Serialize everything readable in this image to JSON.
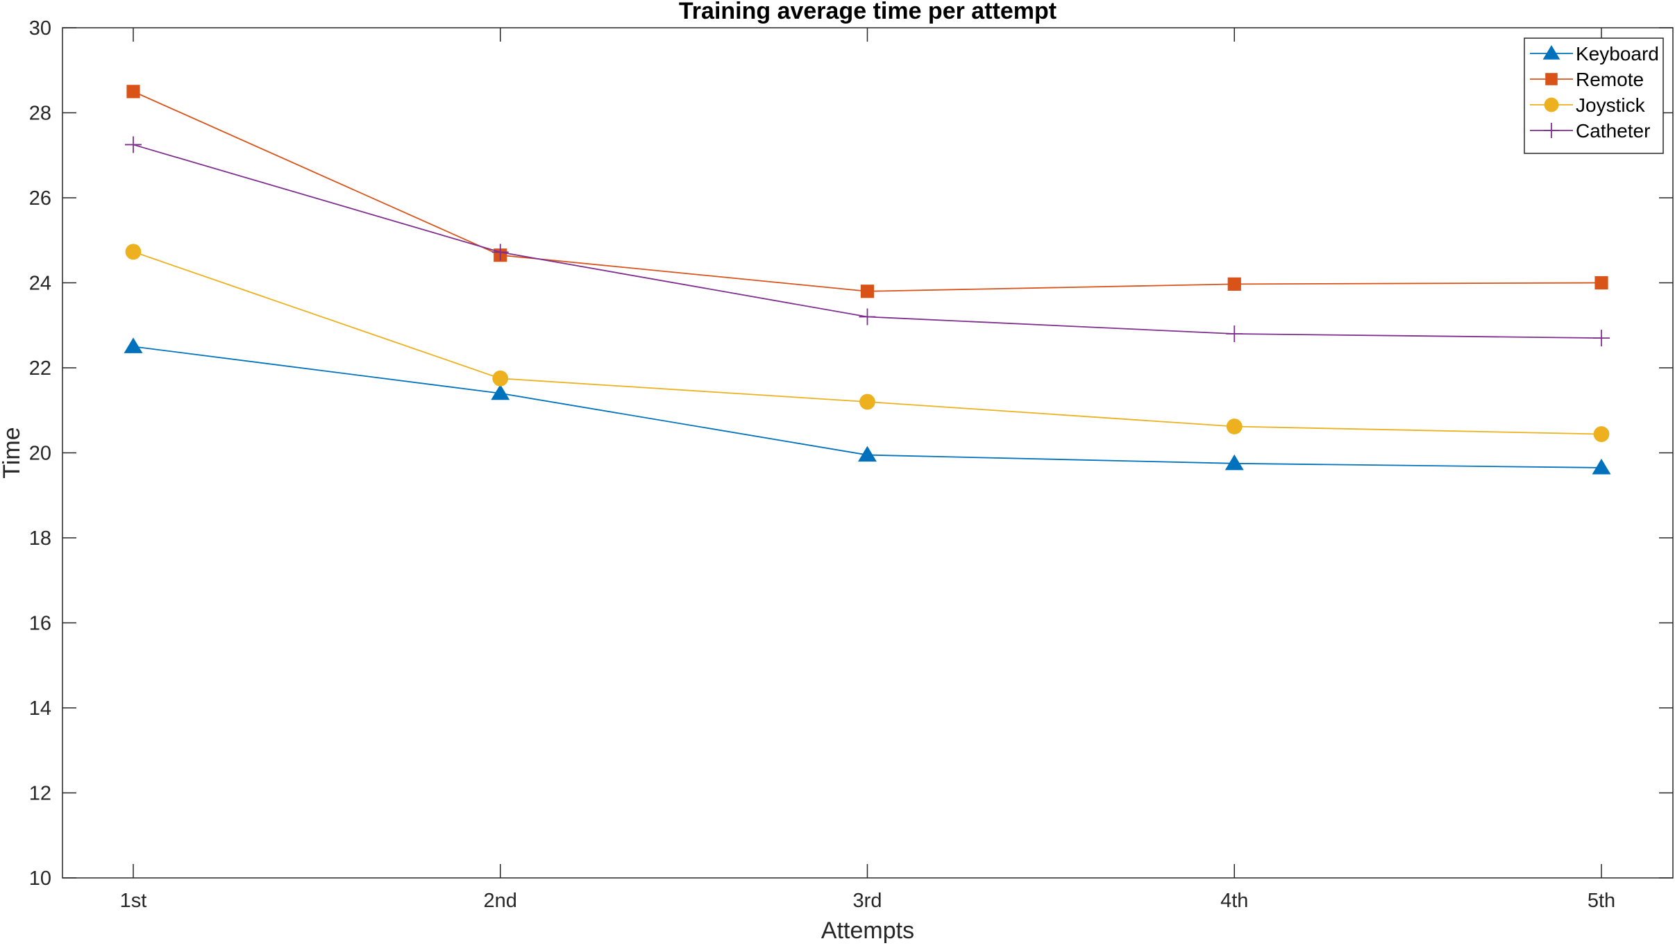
{
  "chart_data": {
    "type": "line",
    "title": "Training average time per attempt",
    "xlabel": "Attempts",
    "ylabel": "Time",
    "categories": [
      "1st",
      "2nd",
      "3rd",
      "4th",
      "5th"
    ],
    "ylim": [
      10,
      30
    ],
    "yticks": [
      10,
      12,
      14,
      16,
      18,
      20,
      22,
      24,
      26,
      28,
      30
    ],
    "grid": false,
    "legend_position": "top-right",
    "series": [
      {
        "name": "Keyboard",
        "values": [
          22.5,
          21.4,
          19.95,
          19.75,
          19.65
        ],
        "color": "#0072BD",
        "marker": "triangle"
      },
      {
        "name": "Remote",
        "values": [
          28.5,
          24.65,
          23.8,
          23.97,
          24.0
        ],
        "color": "#D95319",
        "marker": "square"
      },
      {
        "name": "Joystick",
        "values": [
          24.73,
          21.75,
          21.2,
          20.62,
          20.44
        ],
        "color": "#EDB120",
        "marker": "circle"
      },
      {
        "name": "Catheter",
        "values": [
          27.25,
          24.72,
          23.2,
          22.8,
          22.7
        ],
        "color": "#7E2F8E",
        "marker": "plus"
      }
    ]
  }
}
